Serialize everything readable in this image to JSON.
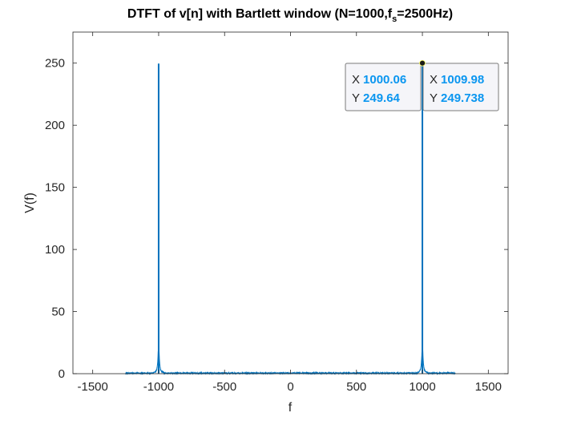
{
  "chart_data": {
    "type": "line",
    "title_main": "DTFT of v[n] with Bartlett window (N=1000,f",
    "title_sub": "s",
    "title_tail": "=2500Hz)",
    "xlabel": "f",
    "ylabel": "V(f)",
    "xlim": [
      -1650,
      1650
    ],
    "ylim": [
      0,
      275
    ],
    "xticks": [
      -1500,
      -1000,
      -500,
      0,
      500,
      1000,
      1500
    ],
    "yticks": [
      0,
      50,
      100,
      150,
      200,
      250
    ],
    "xtick_labels": [
      "-1500",
      "-1000",
      "-500",
      "0",
      "500",
      "1000",
      "1500"
    ],
    "ytick_labels": [
      "0",
      "50",
      "100",
      "150",
      "200",
      "250"
    ],
    "grid": false,
    "series": [
      {
        "color": "#0072bd",
        "range": [
          -1250,
          1250
        ],
        "peaks": [
          {
            "f": -1000,
            "value": 249.6
          },
          {
            "f": 1000,
            "value": 249.7
          }
        ]
      }
    ],
    "datatips": [
      {
        "x_key": "X",
        "x_value": "1000.06",
        "y_key": "Y",
        "y_value": "249.64"
      },
      {
        "x_key": "X",
        "x_value": "1009.98",
        "y_key": "Y",
        "y_value": "249.738"
      }
    ],
    "marker": {
      "f": 1000,
      "value": 250
    }
  }
}
